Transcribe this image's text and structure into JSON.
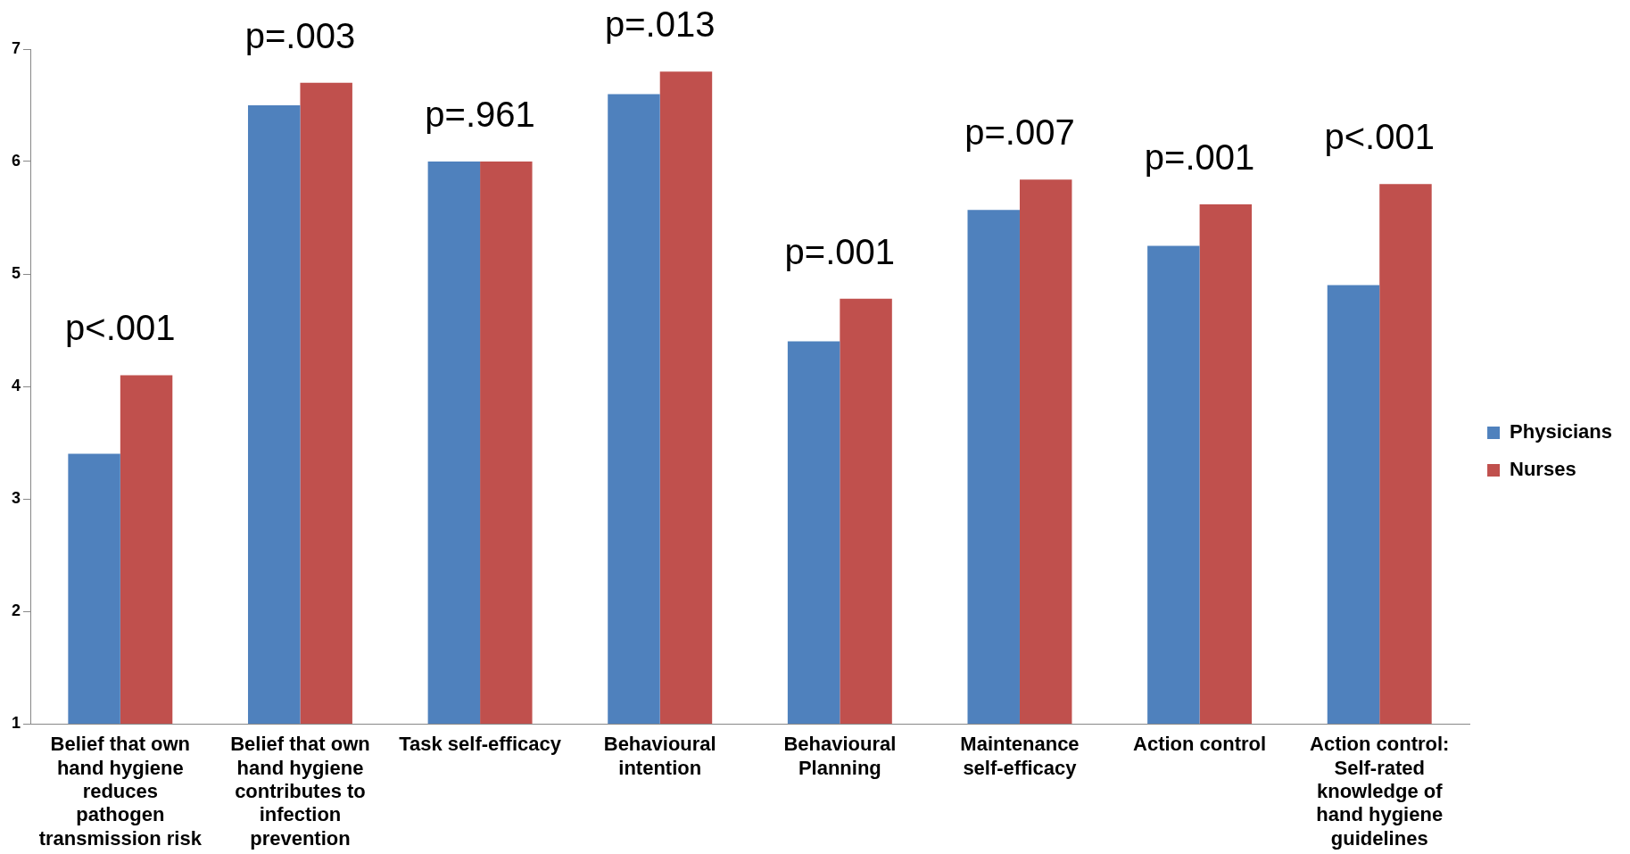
{
  "chart_data": {
    "type": "bar",
    "categories": [
      "Belief that own hand hygiene reduces pathogen transmission risk",
      "Belief that own hand hygiene contributes to infection prevention",
      "Task self-efficacy",
      "Behavioural intention",
      "Behavioural Planning",
      "Maintenance self-efficacy",
      "Action control",
      "Action control: Self-rated knowledge of hand hygiene guidelines"
    ],
    "series": [
      {
        "name": "Physicians",
        "color": "#4f81bd",
        "values": [
          3.4,
          6.5,
          6.0,
          6.6,
          4.4,
          5.57,
          5.25,
          4.9
        ]
      },
      {
        "name": "Nurses",
        "color": "#c0504d",
        "values": [
          4.1,
          6.7,
          6.0,
          6.8,
          4.78,
          5.84,
          5.62,
          5.8
        ]
      }
    ],
    "ylim": [
      1,
      7
    ],
    "yticks": [
      1,
      2,
      3,
      4,
      5,
      6,
      7
    ],
    "grid": false,
    "legend": "right",
    "annotations": [
      "p<.001",
      "p=.003",
      "p=.961",
      "p=.013",
      "p=.001",
      "p=.007",
      "p=.001",
      "p<.001"
    ]
  }
}
